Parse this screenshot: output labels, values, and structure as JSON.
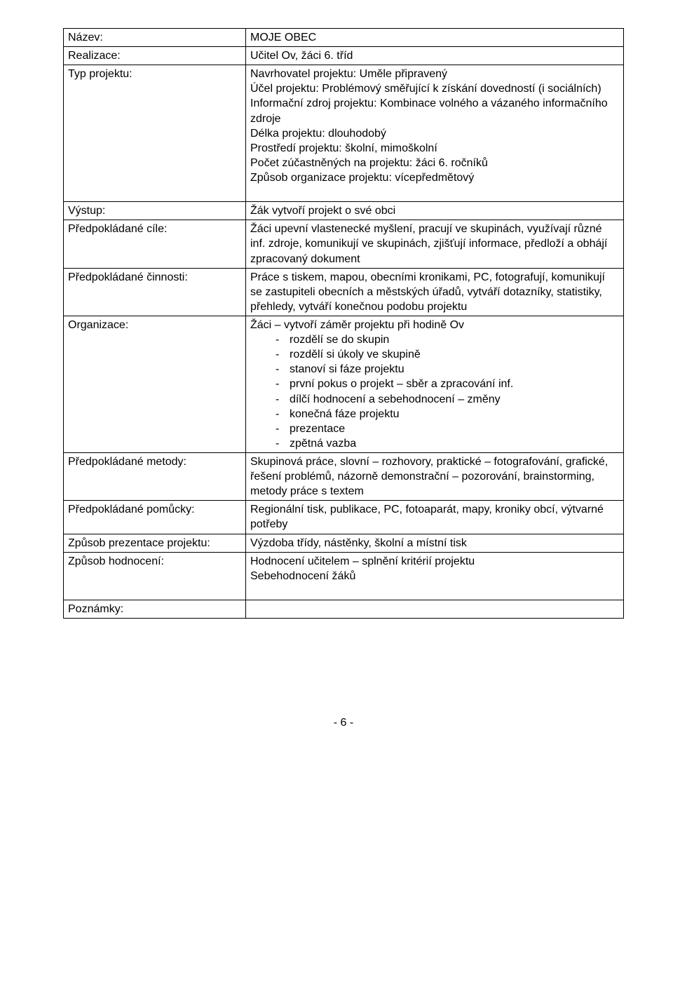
{
  "rows": {
    "nazev": {
      "label": "Název:",
      "value": "MOJE OBEC"
    },
    "realizace": {
      "label": "Realizace:",
      "value": "Učitel Ov, žáci 6. tříd"
    },
    "typ": {
      "label": "Typ projektu:",
      "lines": [
        "Navrhovatel projektu: Uměle připravený",
        "Účel projektu: Problémový směřující k získání dovedností (i sociálních)",
        "Informační zdroj projektu: Kombinace volného a vázaného  informačního zdroje",
        "Délka projektu: dlouhodobý",
        "Prostředí projektu: školní, mimoškolní",
        "Počet zúčastněných na projektu: žáci 6. ročníků",
        "Způsob organizace projektu: vícepředmětový"
      ]
    },
    "vystup": {
      "label": "Výstup:",
      "value": "Žák vytvoří projekt o své obci"
    },
    "cile": {
      "label": "Předpokládané cíle:",
      "value": "Žáci upevní vlastenecké myšlení, pracují ve skupinách, využívají různé inf. zdroje, komunikují ve skupinách, zjišťují informace, předloží a obhájí zpracovaný dokument"
    },
    "cinnosti": {
      "label": "Předpokládané činnosti:",
      "value": "Práce s tiskem, mapou, obecními kronikami, PC, fotografují, komunikují se zastupiteli obecních a městských úřadů, vytváří dotazníky, statistiky, přehledy, vytváří konečnou podobu projektu"
    },
    "organizace": {
      "label": "Organizace:",
      "lead": "Žáci – vytvoří záměr projektu při hodině Ov",
      "bullets": [
        "rozdělí se do skupin",
        "rozdělí si úkoly ve skupině",
        "stanoví si fáze projektu",
        "první pokus o projekt – sběr a zpracování inf.",
        "dílčí hodnocení a sebehodnocení – změny",
        "konečná fáze projektu",
        "prezentace",
        "zpětná vazba"
      ]
    },
    "metody": {
      "label": "Předpokládané metody:",
      "value": "Skupinová práce, slovní – rozhovory, praktické – fotografování, grafické, řešení problémů, názorně demonstrační – pozorování, brainstorming, metody práce s textem"
    },
    "pomucky": {
      "label": "Předpokládané pomůcky:",
      "value": "Regionální tisk, publikace, PC, fotoaparát, mapy, kroniky obcí, výtvarné potřeby"
    },
    "prezentace": {
      "label": "Způsob prezentace projektu:",
      "value": "Výzdoba třídy, nástěnky, školní a místní tisk"
    },
    "hodnoceni": {
      "label": "Způsob hodnocení:",
      "lines": [
        "Hodnocení učitelem – splnění kritérií projektu",
        "Sebehodnocení žáků"
      ]
    },
    "poznamky": {
      "label": "Poznámky:",
      "value": ""
    }
  },
  "footer": "- 6 -"
}
